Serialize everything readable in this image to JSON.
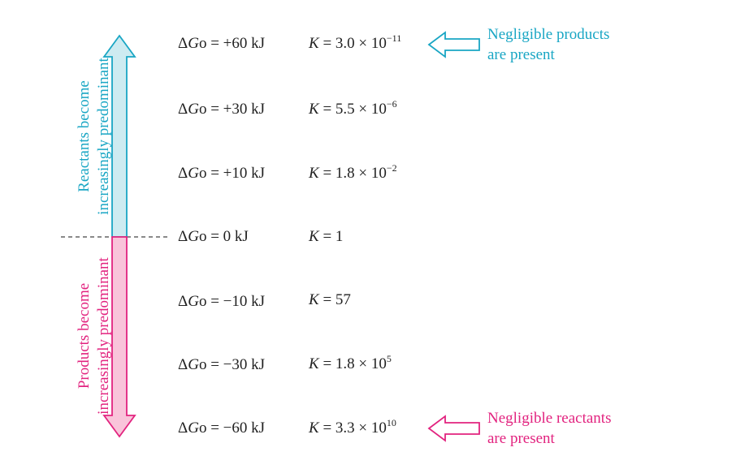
{
  "colors": {
    "reactant": "#19a6c4",
    "reactant_fill": "#cdebf1",
    "product": "#e2237f",
    "product_fill": "#f9c4da",
    "dashed_line": "#444444"
  },
  "labels": {
    "reactants_line1": "Reactants become",
    "reactants_line2": "increasingly predominant",
    "products_line1": "Products become",
    "products_line2": "increasingly predominant"
  },
  "notes": {
    "top_line1": "Negligible products",
    "top_line2": "are present",
    "bottom_line1": "Negligible reactants",
    "bottom_line2": "are present"
  },
  "rows": [
    {
      "dg_value": "= +60 kJ",
      "k_mant": "= 3.0 × 10",
      "k_exp": "−11"
    },
    {
      "dg_value": "= +30 kJ",
      "k_mant": "= 5.5 × 10",
      "k_exp": "−6"
    },
    {
      "dg_value": "= +10 kJ",
      "k_mant": "= 1.8 × 10",
      "k_exp": "−2"
    },
    {
      "dg_value": "= 0 kJ",
      "k_mant": "= 1",
      "k_exp": ""
    },
    {
      "dg_value": "= −10 kJ",
      "k_mant": "= 57",
      "k_exp": ""
    },
    {
      "dg_value": "= −30 kJ",
      "k_mant": "= 1.8 × 10",
      "k_exp": "5"
    },
    {
      "dg_value": "= −60 kJ",
      "k_mant": "= 3.3 × 10",
      "k_exp": "10"
    }
  ],
  "symbols": {
    "delta": "Δ",
    "g": "G",
    "standard": "o",
    "k": "K"
  }
}
